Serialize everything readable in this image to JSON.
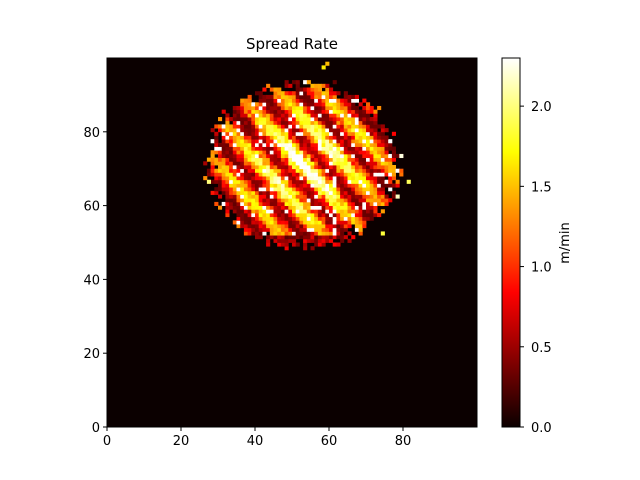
{
  "chart_data": {
    "type": "heatmap",
    "title": "Spread Rate",
    "xlabel": "",
    "ylabel": "",
    "xlim": [
      0,
      100
    ],
    "ylim": [
      0,
      100
    ],
    "x_ticks": [
      "0",
      "20",
      "40",
      "60",
      "80"
    ],
    "y_ticks": [
      "0",
      "20",
      "40",
      "60",
      "80"
    ],
    "grid": "100x100 cells",
    "colormap": "hot",
    "colorbar": {
      "label": "m/min",
      "range": [
        0.0,
        2.3
      ],
      "ticks": [
        "0.0",
        "0.5",
        "1.0",
        "1.5",
        "2.0"
      ]
    },
    "fire_region": {
      "description_center": [
        53,
        71
      ],
      "approx_x_extent": [
        26,
        81
      ],
      "approx_y_extent": [
        47,
        98
      ],
      "value_range": [
        0.0,
        2.3
      ]
    },
    "background_value": 0.0
  }
}
